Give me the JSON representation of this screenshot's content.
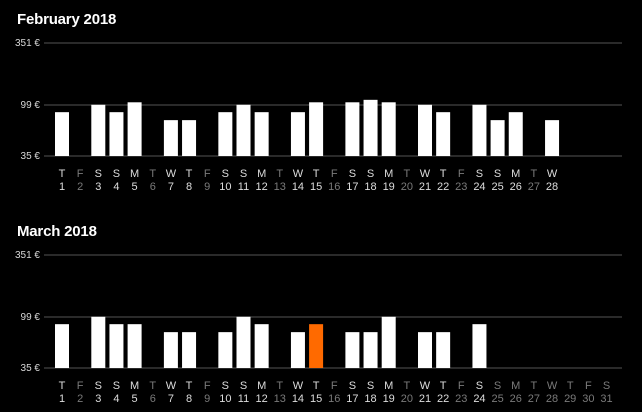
{
  "colors": {
    "background": "#000000",
    "bar": "#ffffff",
    "bar_highlight": "#ff6a00",
    "gridline": "#555555",
    "axis_label_active": "#dddddd",
    "axis_label_inactive": "#7a7a7a"
  },
  "chart_data": [
    {
      "type": "bar",
      "title": "February 2018",
      "y_ticks": [
        "351 €",
        "99 €",
        "35 €"
      ],
      "y_tick_values": [
        351,
        99,
        35
      ],
      "ylim": [
        35,
        351
      ],
      "categories": [
        "1",
        "2",
        "3",
        "4",
        "5",
        "6",
        "7",
        "8",
        "9",
        "10",
        "11",
        "12",
        "13",
        "14",
        "15",
        "16",
        "17",
        "18",
        "19",
        "20",
        "21",
        "22",
        "23",
        "24",
        "25",
        "26",
        "27",
        "28"
      ],
      "weekdays": [
        "T",
        "F",
        "S",
        "S",
        "M",
        "T",
        "W",
        "T",
        "F",
        "S",
        "S",
        "M",
        "T",
        "W",
        "T",
        "F",
        "S",
        "S",
        "M",
        "T",
        "W",
        "T",
        "F",
        "S",
        "S",
        "M",
        "T",
        "W"
      ],
      "values": [
        90,
        null,
        100,
        90,
        110,
        null,
        80,
        80,
        null,
        90,
        100,
        90,
        null,
        90,
        110,
        null,
        110,
        120,
        110,
        null,
        100,
        90,
        null,
        100,
        80,
        90,
        null,
        80
      ],
      "highlighted": null
    },
    {
      "type": "bar",
      "title": "March 2018",
      "y_ticks": [
        "351 €",
        "99 €",
        "35 €"
      ],
      "y_tick_values": [
        351,
        99,
        35
      ],
      "ylim": [
        35,
        351
      ],
      "categories": [
        "1",
        "2",
        "3",
        "4",
        "5",
        "6",
        "7",
        "8",
        "9",
        "10",
        "11",
        "12",
        "13",
        "14",
        "15",
        "16",
        "17",
        "18",
        "19",
        "20",
        "21",
        "22",
        "23",
        "24",
        "25",
        "26",
        "27",
        "28",
        "29",
        "30",
        "31"
      ],
      "weekdays": [
        "T",
        "F",
        "S",
        "S",
        "M",
        "T",
        "W",
        "T",
        "F",
        "S",
        "S",
        "M",
        "T",
        "W",
        "T",
        "F",
        "S",
        "S",
        "M",
        "T",
        "W",
        "T",
        "F",
        "S",
        "S",
        "M",
        "T",
        "W",
        "T",
        "F",
        "S"
      ],
      "values": [
        90,
        null,
        100,
        90,
        90,
        null,
        80,
        80,
        null,
        80,
        100,
        90,
        null,
        80,
        90,
        null,
        80,
        80,
        100,
        null,
        80,
        80,
        null,
        90,
        null,
        null,
        null,
        null,
        null,
        null,
        null
      ],
      "highlighted": "15"
    }
  ]
}
